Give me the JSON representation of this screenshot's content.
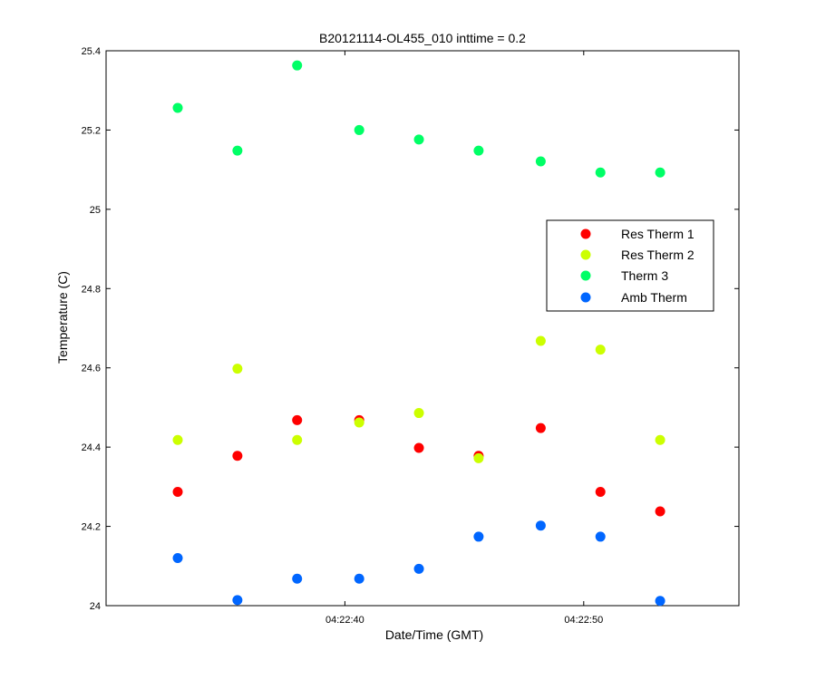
{
  "chart_data": {
    "type": "scatter",
    "title": "B20121114-OL455_010 inttime = 0.2",
    "xlabel": "Date/Time (GMT)",
    "ylabel": "Temperature (C)",
    "xlim": [
      "04:22:30",
      "04:22:56.5"
    ],
    "ylim": [
      24,
      25.4
    ],
    "x_ticks": [
      "04:22:40",
      "04:22:50"
    ],
    "y_ticks": [
      "24",
      "24.2",
      "24.4",
      "24.6",
      "24.8",
      "25",
      "25.2",
      "25.4"
    ],
    "grid": false,
    "legend_position": "right-center",
    "x": [
      "04:22:33",
      "04:22:35.5",
      "04:22:38",
      "04:22:40.6",
      "04:22:43.1",
      "04:22:45.6",
      "04:22:48.2",
      "04:22:50.7",
      "04:22:53.2"
    ],
    "series": [
      {
        "name": "Res Therm 1",
        "color": "#ff0000",
        "values": [
          24.287,
          24.378,
          24.468,
          24.468,
          24.398,
          24.378,
          24.448,
          24.287,
          24.238
        ]
      },
      {
        "name": "Res Therm 2",
        "color": "#ccff00",
        "values": [
          24.418,
          24.598,
          24.418,
          24.462,
          24.486,
          24.372,
          24.668,
          24.646,
          24.418
        ]
      },
      {
        "name": "Therm 3",
        "color": "#00ff66",
        "values": [
          25.256,
          25.148,
          25.363,
          25.2,
          25.176,
          25.148,
          25.121,
          25.093,
          25.093
        ]
      },
      {
        "name": "Amb Therm",
        "color": "#0066ff",
        "values": [
          24.12,
          24.014,
          24.068,
          24.068,
          24.093,
          24.174,
          24.202,
          24.174,
          24.012
        ]
      }
    ]
  }
}
